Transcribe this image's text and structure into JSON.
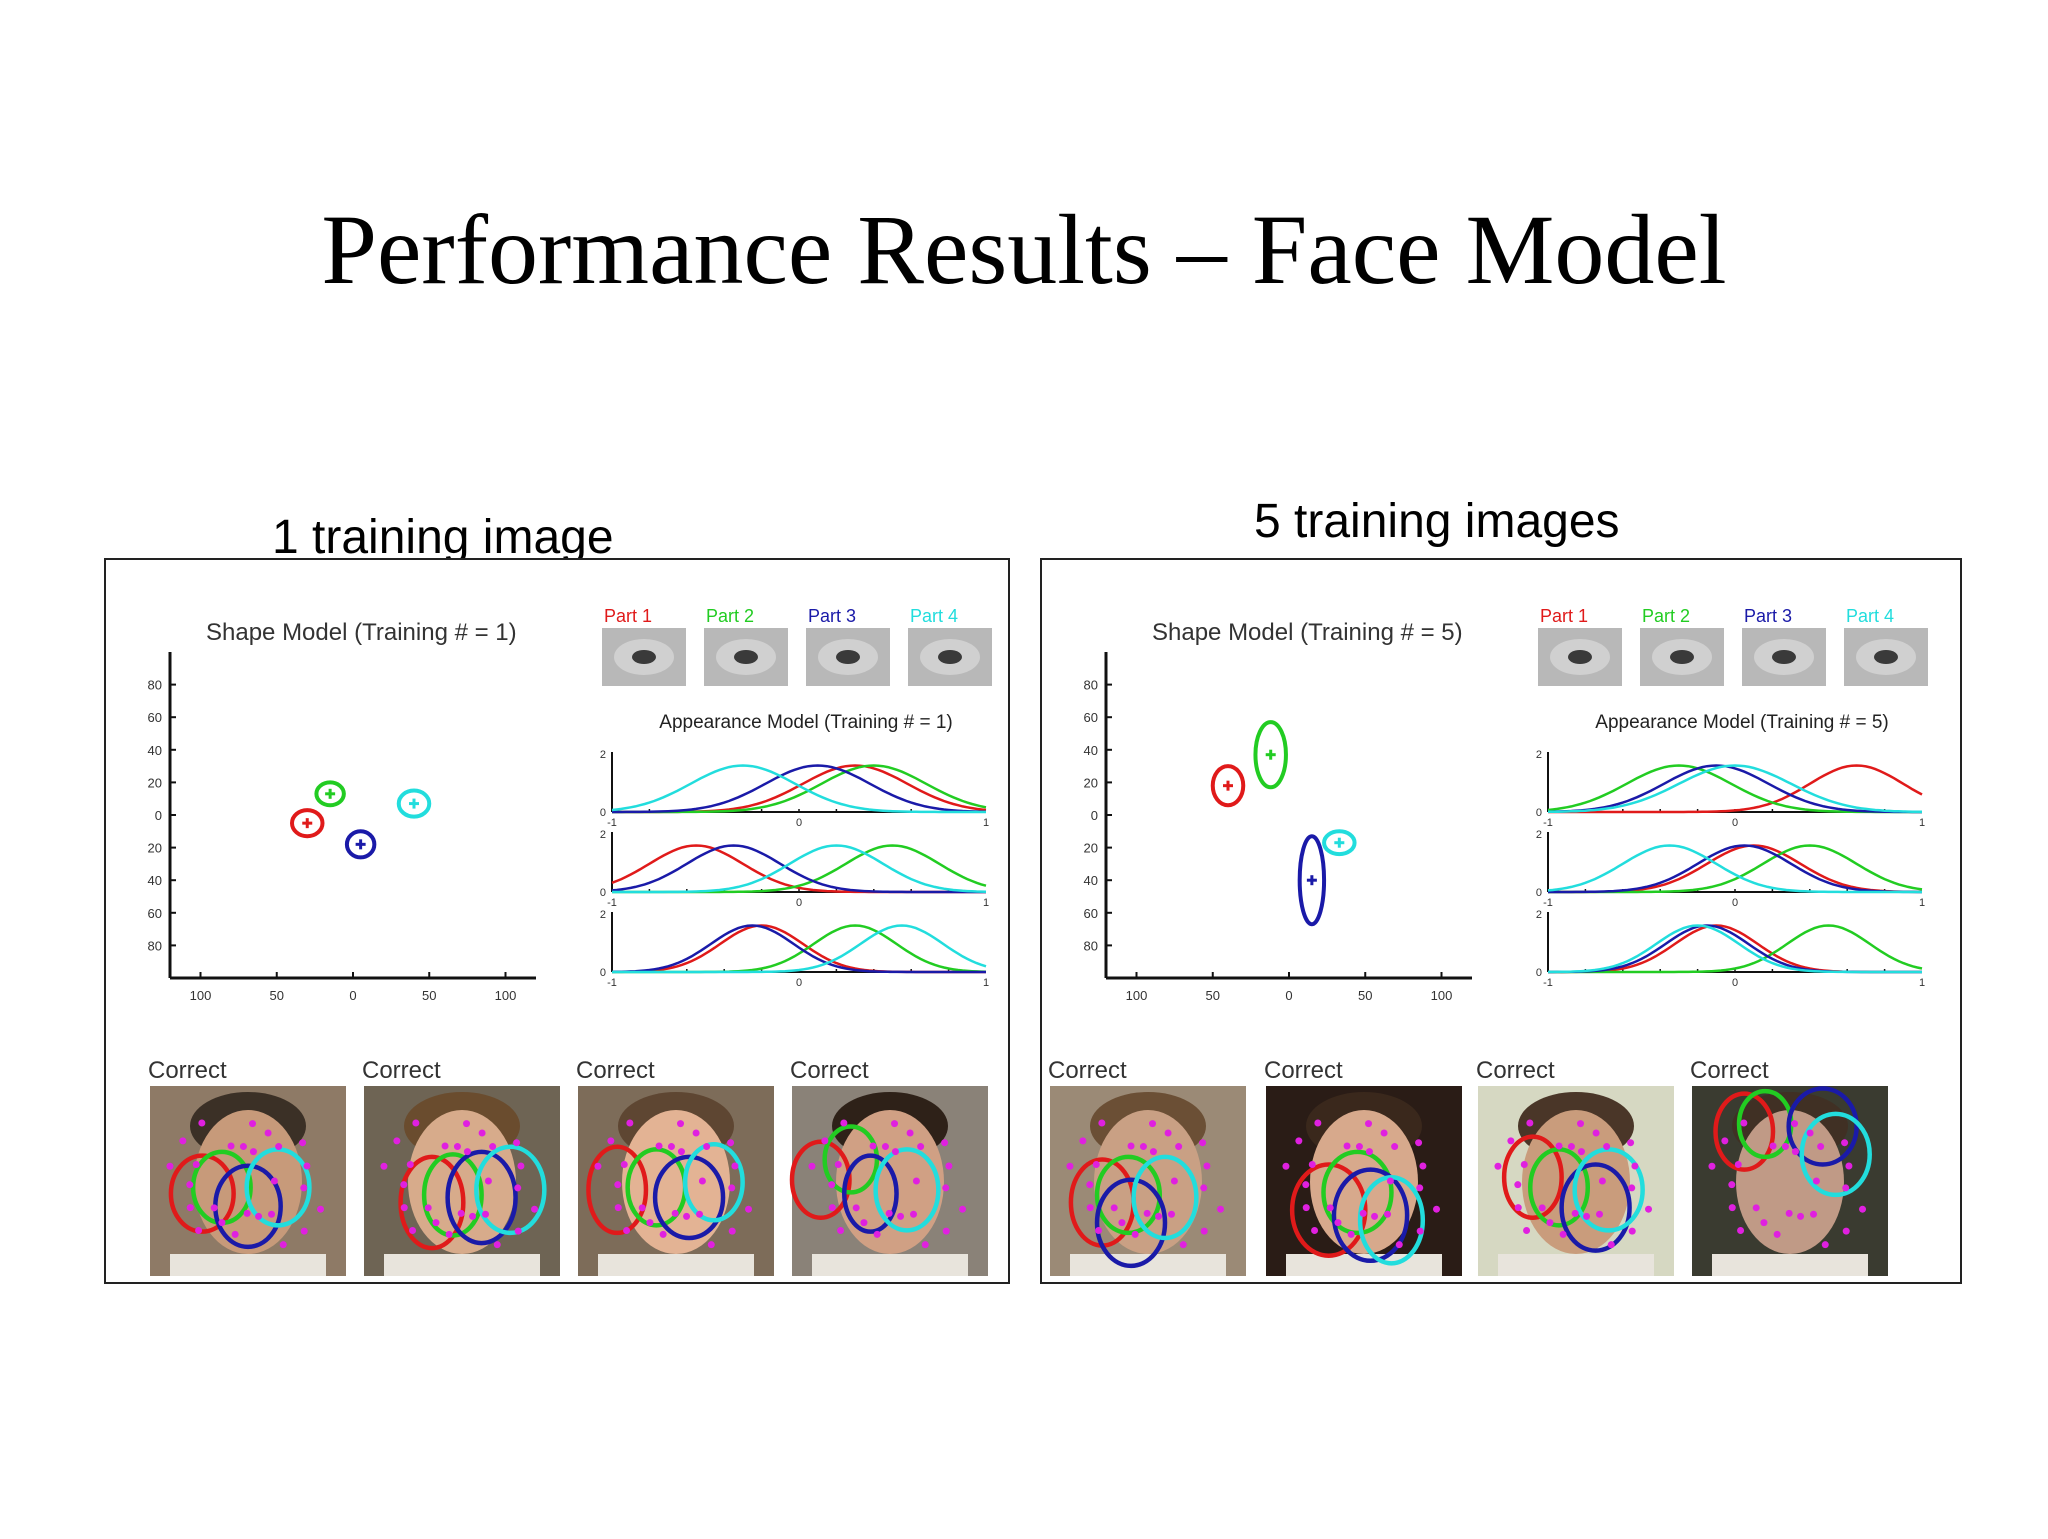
{
  "slide": {
    "title": "Performance Results – Face Model"
  },
  "panels": [
    {
      "caption": "1 training image",
      "shape_model": {
        "title": "Shape Model (Training # = 1)",
        "y_ticks": [
          "80",
          "60",
          "40",
          "20",
          "0",
          "20",
          "40",
          "60",
          "80"
        ],
        "x_ticks": [
          "100",
          "50",
          "0",
          "50",
          "100"
        ],
        "parts": [
          {
            "color": "#e01a1a",
            "x": -30,
            "y": -5,
            "rx": 10,
            "ry": 8
          },
          {
            "color": "#22cc22",
            "x": -15,
            "y": 13,
            "rx": 9,
            "ry": 7
          },
          {
            "color": "#1a1aa8",
            "x": 5,
            "y": -18,
            "rx": 9,
            "ry": 8
          },
          {
            "color": "#22dddd",
            "x": 40,
            "y": 7,
            "rx": 10,
            "ry": 8
          }
        ]
      },
      "part_labels": [
        "Part 1",
        "Part 2",
        "Part 3",
        "Part 4"
      ],
      "appearance_model": {
        "title": "Appearance Model (Training # = 1)",
        "y_tick_top": "2",
        "y_tick_bottom": "0",
        "x_ticks": [
          "-1",
          "0",
          "1"
        ],
        "rows": [
          [
            {
              "mu": 0.3,
              "s": 0.28
            },
            {
              "mu": 0.4,
              "s": 0.28
            },
            {
              "mu": 0.1,
              "s": 0.28
            },
            {
              "mu": -0.3,
              "s": 0.28
            }
          ],
          [
            {
              "mu": -0.55,
              "s": 0.25
            },
            {
              "mu": 0.5,
              "s": 0.25
            },
            {
              "mu": -0.35,
              "s": 0.25
            },
            {
              "mu": 0.2,
              "s": 0.25
            }
          ],
          [
            {
              "mu": -0.2,
              "s": 0.22
            },
            {
              "mu": 0.3,
              "s": 0.22
            },
            {
              "mu": -0.25,
              "s": 0.22
            },
            {
              "mu": 0.55,
              "s": 0.22
            }
          ]
        ]
      },
      "result_label": "Correct",
      "faces": [
        {
          "bg": "#8e7a66",
          "skin": "#c79a7a",
          "hair": "#3b3026",
          "ellipses": [
            [
              40,
              85,
              24,
              30
            ],
            [
              55,
              80,
              22,
              28
            ],
            [
              75,
              95,
              25,
              32
            ],
            [
              98,
              80,
              24,
              30
            ]
          ]
        },
        {
          "bg": "#6e6454",
          "skin": "#d7ab8b",
          "hair": "#6a4c2e",
          "ellipses": [
            [
              52,
              92,
              24,
              36
            ],
            [
              68,
              86,
              22,
              32
            ],
            [
              90,
              88,
              26,
              36
            ],
            [
              112,
              82,
              26,
              34
            ]
          ]
        },
        {
          "bg": "#7d6c59",
          "skin": "#e3b394",
          "hair": "#5e4632",
          "ellipses": [
            [
              30,
              82,
              22,
              34
            ],
            [
              60,
              80,
              22,
              30
            ],
            [
              85,
              88,
              26,
              32
            ],
            [
              104,
              76,
              22,
              30
            ]
          ]
        },
        {
          "bg": "#8a8278",
          "skin": "#d0a084",
          "hair": "#2e2118",
          "ellipses": [
            [
              22,
              74,
              22,
              30
            ],
            [
              45,
              58,
              20,
              26
            ],
            [
              60,
              85,
              20,
              30
            ],
            [
              88,
              82,
              24,
              32
            ]
          ]
        }
      ]
    },
    {
      "caption": "5 training images",
      "shape_model": {
        "title": "Shape Model (Training # = 5)",
        "y_ticks": [
          "80",
          "60",
          "40",
          "20",
          "0",
          "20",
          "40",
          "60",
          "80"
        ],
        "x_ticks": [
          "100",
          "50",
          "0",
          "50",
          "100"
        ],
        "parts": [
          {
            "color": "#e01a1a",
            "x": -40,
            "y": 18,
            "rx": 10,
            "ry": 12
          },
          {
            "color": "#22cc22",
            "x": -12,
            "y": 37,
            "rx": 10,
            "ry": 20
          },
          {
            "color": "#1a1aa8",
            "x": 15,
            "y": -40,
            "rx": 8,
            "ry": 27
          },
          {
            "color": "#22dddd",
            "x": 33,
            "y": -17,
            "rx": 10,
            "ry": 7
          }
        ]
      },
      "part_labels": [
        "Part 1",
        "Part 2",
        "Part 3",
        "Part 4"
      ],
      "appearance_model": {
        "title": "Appearance Model (Training # = 5)",
        "y_tick_top": "2",
        "y_tick_bottom": "0",
        "x_ticks": [
          "-1",
          "0",
          "1"
        ],
        "rows": [
          [
            {
              "mu": 0.65,
              "s": 0.25
            },
            {
              "mu": -0.3,
              "s": 0.28
            },
            {
              "mu": -0.1,
              "s": 0.28
            },
            {
              "mu": 0.0,
              "s": 0.3
            }
          ],
          [
            {
              "mu": 0.1,
              "s": 0.25
            },
            {
              "mu": 0.4,
              "s": 0.25
            },
            {
              "mu": 0.05,
              "s": 0.25
            },
            {
              "mu": -0.35,
              "s": 0.25
            }
          ],
          [
            {
              "mu": -0.1,
              "s": 0.22
            },
            {
              "mu": 0.5,
              "s": 0.22
            },
            {
              "mu": -0.15,
              "s": 0.22
            },
            {
              "mu": -0.2,
              "s": 0.22
            }
          ]
        ]
      },
      "result_label": "Correct",
      "faces": [
        {
          "bg": "#9b8a76",
          "skin": "#c9a084",
          "hair": "#6b4f35",
          "ellipses": [
            [
              40,
              92,
              24,
              34
            ],
            [
              60,
              86,
              24,
              30
            ],
            [
              62,
              108,
              26,
              34
            ],
            [
              88,
              88,
              24,
              32
            ]
          ]
        },
        {
          "bg": "#2a1c16",
          "skin": "#d7a98c",
          "hair": "#3a281c",
          "ellipses": [
            [
              48,
              98,
              28,
              36
            ],
            [
              70,
              84,
              26,
              32
            ],
            [
              80,
              102,
              28,
              36
            ],
            [
              96,
              106,
              24,
              34
            ]
          ]
        },
        {
          "bg": "#d6d8c2",
          "skin": "#c99c7c",
          "hair": "#4a3628",
          "ellipses": [
            [
              42,
              72,
              22,
              32
            ],
            [
              62,
              80,
              22,
              30
            ],
            [
              90,
              96,
              26,
              34
            ],
            [
              100,
              82,
              26,
              32
            ]
          ]
        },
        {
          "bg": "#3a3b30",
          "skin": "#c09a86",
          "hair": "#403024",
          "ellipses": [
            [
              40,
              36,
              22,
              30
            ],
            [
              56,
              30,
              20,
              26
            ],
            [
              100,
              32,
              26,
              30
            ],
            [
              110,
              54,
              26,
              32
            ]
          ]
        }
      ]
    }
  ]
}
